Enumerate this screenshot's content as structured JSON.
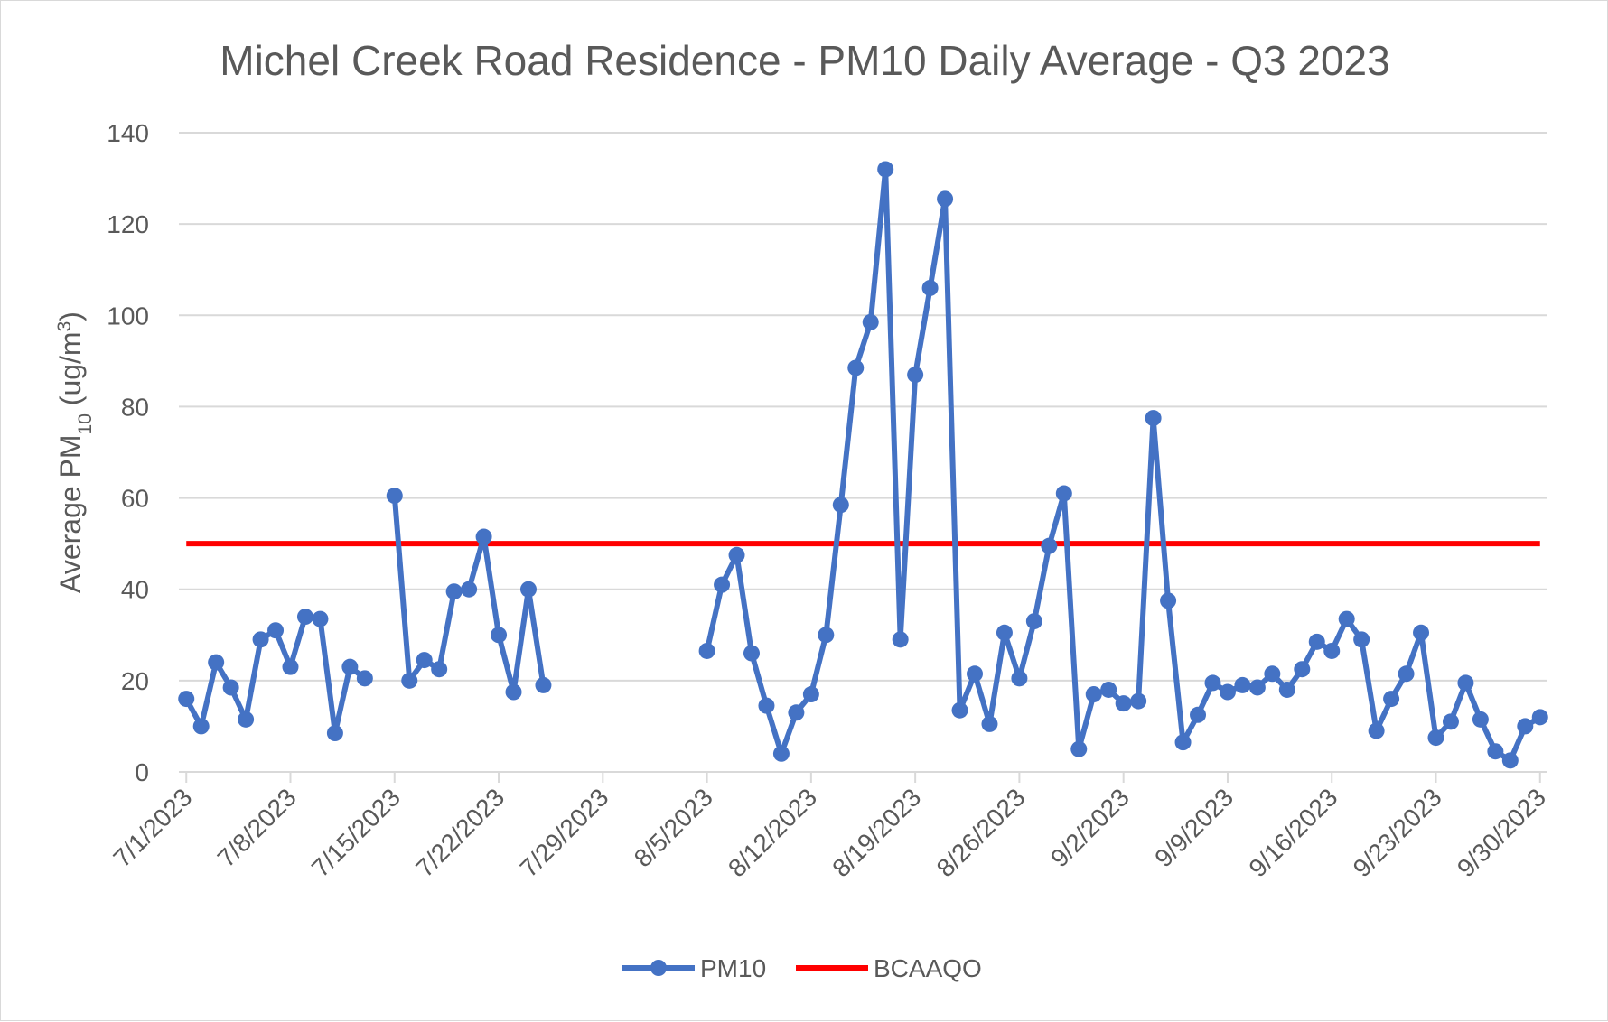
{
  "chart_data": {
    "type": "line",
    "title": "Michel Creek Road Residence - PM10 Daily Average - Q3 2023",
    "ylabel": {
      "prefix": "Average PM",
      "sub": "10",
      "mid": " (ug/m",
      "sup": "3",
      "suffix": ")"
    },
    "xlabel": "",
    "ylim": [
      0,
      140
    ],
    "yticks": [
      0,
      20,
      40,
      60,
      80,
      100,
      120,
      140
    ],
    "xlim": [
      "2023-07-01",
      "2023-09-30"
    ],
    "xticks": [
      "7/1/2023",
      "7/8/2023",
      "7/15/2023",
      "7/22/2023",
      "7/29/2023",
      "8/5/2023",
      "8/12/2023",
      "8/19/2023",
      "8/26/2023",
      "9/2/2023",
      "9/9/2023",
      "9/16/2023",
      "9/23/2023",
      "9/30/2023"
    ],
    "grid": true,
    "legend_position": "bottom",
    "series": [
      {
        "name": "PM10",
        "color": "#4472c4",
        "marker": "circle",
        "points": [
          [
            "2023-07-01",
            16
          ],
          [
            "2023-07-02",
            10
          ],
          [
            "2023-07-03",
            24
          ],
          [
            "2023-07-04",
            18.5
          ],
          [
            "2023-07-05",
            11.5
          ],
          [
            "2023-07-06",
            29
          ],
          [
            "2023-07-07",
            31
          ],
          [
            "2023-07-08",
            23
          ],
          [
            "2023-07-09",
            34
          ],
          [
            "2023-07-10",
            33.5
          ],
          [
            "2023-07-11",
            8.5
          ],
          [
            "2023-07-12",
            23
          ],
          [
            "2023-07-13",
            20.5
          ],
          [
            "2023-07-14",
            null
          ],
          [
            "2023-07-15",
            60.5
          ],
          [
            "2023-07-16",
            20
          ],
          [
            "2023-07-17",
            24.5
          ],
          [
            "2023-07-18",
            22.5
          ],
          [
            "2023-07-19",
            39.5
          ],
          [
            "2023-07-20",
            40
          ],
          [
            "2023-07-21",
            51.5
          ],
          [
            "2023-07-22",
            30
          ],
          [
            "2023-07-23",
            17.5
          ],
          [
            "2023-07-24",
            40
          ],
          [
            "2023-07-25",
            19
          ],
          [
            "2023-07-26",
            null
          ],
          [
            "2023-07-27",
            null
          ],
          [
            "2023-07-28",
            null
          ],
          [
            "2023-07-29",
            null
          ],
          [
            "2023-07-30",
            null
          ],
          [
            "2023-07-31",
            null
          ],
          [
            "2023-08-01",
            null
          ],
          [
            "2023-08-02",
            null
          ],
          [
            "2023-08-03",
            null
          ],
          [
            "2023-08-04",
            null
          ],
          [
            "2023-08-05",
            26.5
          ],
          [
            "2023-08-06",
            41
          ],
          [
            "2023-08-07",
            47.5
          ],
          [
            "2023-08-08",
            26
          ],
          [
            "2023-08-09",
            14.5
          ],
          [
            "2023-08-10",
            4
          ],
          [
            "2023-08-11",
            13
          ],
          [
            "2023-08-12",
            17
          ],
          [
            "2023-08-13",
            30
          ],
          [
            "2023-08-14",
            58.5
          ],
          [
            "2023-08-15",
            88.5
          ],
          [
            "2023-08-16",
            98.5
          ],
          [
            "2023-08-17",
            132
          ],
          [
            "2023-08-18",
            29
          ],
          [
            "2023-08-19",
            87
          ],
          [
            "2023-08-20",
            106
          ],
          [
            "2023-08-21",
            125.5
          ],
          [
            "2023-08-22",
            13.5
          ],
          [
            "2023-08-23",
            21.5
          ],
          [
            "2023-08-24",
            10.5
          ],
          [
            "2023-08-25",
            30.5
          ],
          [
            "2023-08-26",
            20.5
          ],
          [
            "2023-08-27",
            33
          ],
          [
            "2023-08-28",
            49.5
          ],
          [
            "2023-08-29",
            61
          ],
          [
            "2023-08-30",
            5
          ],
          [
            "2023-08-31",
            17
          ],
          [
            "2023-09-01",
            18
          ],
          [
            "2023-09-02",
            15
          ],
          [
            "2023-09-03",
            15.5
          ],
          [
            "2023-09-04",
            77.5
          ],
          [
            "2023-09-05",
            37.5
          ],
          [
            "2023-09-06",
            6.5
          ],
          [
            "2023-09-07",
            12.5
          ],
          [
            "2023-09-08",
            19.5
          ],
          [
            "2023-09-09",
            17.5
          ],
          [
            "2023-09-10",
            19
          ],
          [
            "2023-09-11",
            18.5
          ],
          [
            "2023-09-12",
            21.5
          ],
          [
            "2023-09-13",
            18
          ],
          [
            "2023-09-14",
            22.5
          ],
          [
            "2023-09-15",
            28.5
          ],
          [
            "2023-09-16",
            26.5
          ],
          [
            "2023-09-17",
            33.5
          ],
          [
            "2023-09-18",
            29
          ],
          [
            "2023-09-19",
            9
          ],
          [
            "2023-09-20",
            16
          ],
          [
            "2023-09-21",
            21.5
          ],
          [
            "2023-09-22",
            30.5
          ],
          [
            "2023-09-23",
            7.5
          ],
          [
            "2023-09-24",
            11
          ],
          [
            "2023-09-25",
            19.5
          ],
          [
            "2023-09-26",
            11.5
          ],
          [
            "2023-09-27",
            4.5
          ],
          [
            "2023-09-28",
            2.5
          ],
          [
            "2023-09-29",
            10
          ],
          [
            "2023-09-30",
            12
          ]
        ]
      },
      {
        "name": "BCAAQO",
        "color": "#ff0000",
        "marker": "none",
        "points": [
          [
            "2023-07-01",
            50
          ],
          [
            "2023-09-30",
            50
          ]
        ]
      }
    ]
  }
}
